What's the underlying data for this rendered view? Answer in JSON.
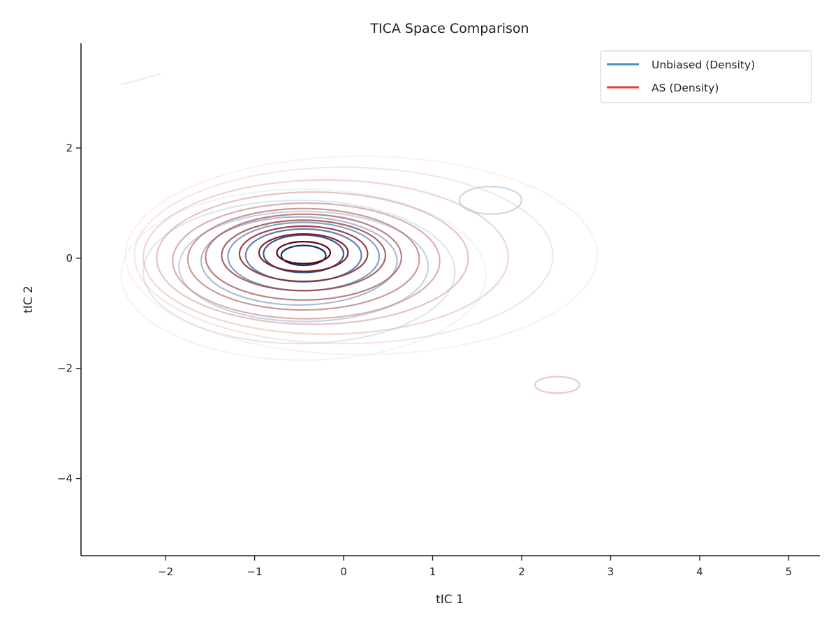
{
  "chart_data": {
    "type": "contour",
    "title": "TICA Space Comparison",
    "xlabel": "tIC 1",
    "ylabel": "tIC 2",
    "xlim": [
      -2.95,
      5.35
    ],
    "ylim": [
      -5.4,
      3.9
    ],
    "xticks": [
      -2,
      -1,
      0,
      1,
      2,
      3,
      4,
      5
    ],
    "yticks": [
      -4,
      -2,
      0,
      2
    ],
    "xtick_labels": [
      "−2",
      "−1",
      "0",
      "1",
      "2",
      "3",
      "4",
      "5"
    ],
    "ytick_labels": [
      "−4",
      "−2",
      "0",
      "2"
    ],
    "grid": false,
    "legend_position": "upper right",
    "series": [
      {
        "name": "Unbiased (Density)",
        "color": "#4292c6",
        "colormap": "Blues",
        "levels": [
          {
            "cx": -0.45,
            "cy": 0.05,
            "rx": 0.25,
            "ry": 0.18
          },
          {
            "cx": -0.45,
            "cy": 0.08,
            "rx": 0.45,
            "ry": 0.34
          },
          {
            "cx": -0.45,
            "cy": 0.05,
            "rx": 0.65,
            "ry": 0.48
          },
          {
            "cx": -0.45,
            "cy": 0.03,
            "rx": 0.85,
            "ry": 0.62
          },
          {
            "cx": -0.5,
            "cy": -0.05,
            "rx": 1.1,
            "ry": 0.8
          },
          {
            "cx": -0.45,
            "cy": -0.15,
            "rx": 1.4,
            "ry": 1.0
          },
          {
            "cx": -0.5,
            "cy": -0.25,
            "rx": 1.75,
            "ry": 1.3
          },
          {
            "cx": -0.45,
            "cy": -0.3,
            "rx": 2.05,
            "ry": 1.55
          }
        ],
        "side_peak": {
          "cx": 1.65,
          "cy": 1.05,
          "rx": 0.35,
          "ry": 0.25
        },
        "outlier_arc": [
          [
            -2.5,
            3.15
          ],
          [
            -2.2,
            3.28
          ],
          [
            -2.05,
            3.35
          ]
        ]
      },
      {
        "name": "AS (Density)",
        "color": "#ef3b2c",
        "colormap": "Reds",
        "levels": [
          {
            "cx": -0.45,
            "cy": 0.1,
            "rx": 0.3,
            "ry": 0.2
          },
          {
            "cx": -0.45,
            "cy": 0.1,
            "rx": 0.5,
            "ry": 0.34
          },
          {
            "cx": -0.45,
            "cy": 0.08,
            "rx": 0.72,
            "ry": 0.5
          },
          {
            "cx": -0.45,
            "cy": 0.05,
            "rx": 0.92,
            "ry": 0.64
          },
          {
            "cx": -0.45,
            "cy": 0.02,
            "rx": 1.1,
            "ry": 0.78
          },
          {
            "cx": -0.45,
            "cy": -0.02,
            "rx": 1.3,
            "ry": 0.92
          },
          {
            "cx": -0.42,
            "cy": -0.05,
            "rx": 1.5,
            "ry": 1.05
          },
          {
            "cx": -0.35,
            "cy": 0.0,
            "rx": 1.75,
            "ry": 1.2
          },
          {
            "cx": -0.2,
            "cy": 0.02,
            "rx": 2.05,
            "ry": 1.4
          },
          {
            "cx": 0.0,
            "cy": 0.05,
            "rx": 2.35,
            "ry": 1.6
          },
          {
            "cx": 0.2,
            "cy": 0.05,
            "rx": 2.65,
            "ry": 1.8
          }
        ],
        "side_peak": {
          "cx": 2.4,
          "cy": -2.3,
          "rx": 0.25,
          "ry": 0.15
        }
      }
    ]
  }
}
